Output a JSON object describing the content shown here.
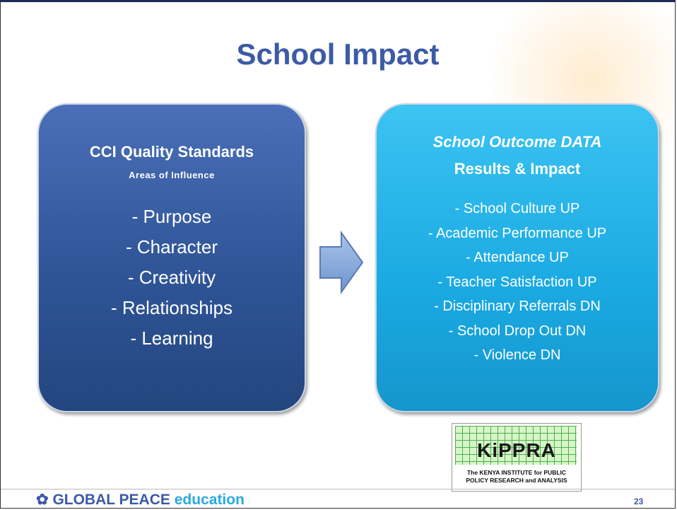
{
  "title": "School Impact",
  "left_box": {
    "title": "CCI Quality Standards",
    "subtitle": "Areas of Influence",
    "items": [
      "- Purpose",
      "- Character",
      "- Creativity",
      "- Relationships",
      "- Learning"
    ]
  },
  "right_box": {
    "title": "School Outcome DATA",
    "subtitle": "Results & Impact",
    "items": [
      "- School Culture UP",
      "- Academic Performance UP",
      "- Attendance UP",
      "- Teacher Satisfaction UP",
      "- Disciplinary Referrals DN",
      "- School Drop Out DN",
      "- Violence DN"
    ]
  },
  "logo": {
    "name": "KiPPRA",
    "caption_lines": [
      "The KENYA INSTITUTE for PUBLIC",
      "POLICY RESEARCH and ANALYSIS"
    ]
  },
  "footer": {
    "brand": "GLOBAL PEACE",
    "brand_suffix": "education",
    "page_number": "23"
  }
}
